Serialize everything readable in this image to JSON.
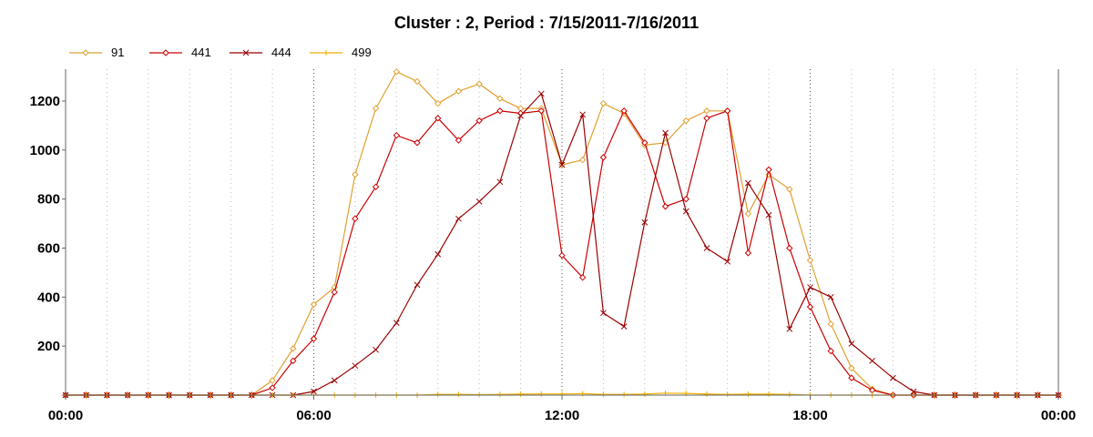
{
  "chart_data": {
    "type": "line",
    "title": "Cluster : 2, Period : 7/15/2011-7/16/2011",
    "xlabel": "",
    "ylabel": "",
    "x_ticks": [
      "00:00",
      "06:00",
      "12:00",
      "18:00",
      "00:00"
    ],
    "y_ticks": [
      200,
      400,
      600,
      800,
      1000,
      1200
    ],
    "xlim_hours": [
      0,
      24
    ],
    "ylim": [
      0,
      1330
    ],
    "grid": true,
    "legend_position": "top-left",
    "series": [
      {
        "name": "91",
        "color": "#e0a030",
        "marker": "diamond",
        "x": [
          0,
          0.5,
          1,
          1.5,
          2,
          2.5,
          3,
          3.5,
          4,
          4.5,
          5,
          5.5,
          6,
          6.5,
          7,
          7.5,
          8,
          8.5,
          9,
          9.5,
          10,
          10.5,
          11,
          11.5,
          12,
          12.5,
          13,
          13.5,
          14,
          14.5,
          15,
          15.5,
          16,
          16.5,
          17,
          17.5,
          18,
          18.5,
          19,
          19.5,
          20,
          20.5,
          21,
          21.5,
          22,
          22.5,
          23,
          23.5,
          24
        ],
        "values": [
          0,
          0,
          0,
          0,
          0,
          0,
          0,
          0,
          0,
          0,
          60,
          190,
          370,
          440,
          900,
          1170,
          1320,
          1280,
          1190,
          1240,
          1270,
          1210,
          1170,
          1170,
          940,
          960,
          1190,
          1150,
          1020,
          1030,
          1120,
          1160,
          1160,
          740,
          900,
          840,
          550,
          290,
          110,
          25,
          0,
          0,
          0,
          0,
          0,
          0,
          0,
          0,
          0
        ]
      },
      {
        "name": "441",
        "color": "#cc0000",
        "marker": "diamond",
        "x": [
          0,
          0.5,
          1,
          1.5,
          2,
          2.5,
          3,
          3.5,
          4,
          4.5,
          5,
          5.5,
          6,
          6.5,
          7,
          7.5,
          8,
          8.5,
          9,
          9.5,
          10,
          10.5,
          11,
          11.5,
          12,
          12.5,
          13,
          13.5,
          14,
          14.5,
          15,
          15.5,
          16,
          16.5,
          17,
          17.5,
          18,
          18.5,
          19,
          19.5,
          20,
          20.5,
          21,
          21.5,
          22,
          22.5,
          23,
          23.5,
          24
        ],
        "values": [
          0,
          0,
          0,
          0,
          0,
          0,
          0,
          0,
          0,
          0,
          30,
          140,
          230,
          420,
          720,
          850,
          1060,
          1030,
          1130,
          1040,
          1120,
          1160,
          1150,
          1160,
          570,
          480,
          970,
          1160,
          1030,
          770,
          800,
          1130,
          1160,
          580,
          920,
          600,
          360,
          180,
          70,
          20,
          0,
          0,
          0,
          0,
          0,
          0,
          0,
          0,
          0
        ]
      },
      {
        "name": "444",
        "color": "#990000",
        "marker": "x",
        "x": [
          0,
          0.5,
          1,
          1.5,
          2,
          2.5,
          3,
          3.5,
          4,
          4.5,
          5,
          5.5,
          6,
          6.5,
          7,
          7.5,
          8,
          8.5,
          9,
          9.5,
          10,
          10.5,
          11,
          11.5,
          12,
          12.5,
          13,
          13.5,
          14,
          14.5,
          15,
          15.5,
          16,
          16.5,
          17,
          17.5,
          18,
          18.5,
          19,
          19.5,
          20,
          20.5,
          21,
          21.5,
          22,
          22.5,
          23,
          23.5,
          24
        ],
        "values": [
          0,
          0,
          0,
          0,
          0,
          0,
          0,
          0,
          0,
          0,
          0,
          0,
          15,
          60,
          120,
          185,
          295,
          450,
          575,
          720,
          790,
          870,
          1140,
          1230,
          940,
          1145,
          335,
          280,
          705,
          1070,
          750,
          600,
          545,
          865,
          735,
          270,
          440,
          400,
          210,
          140,
          70,
          15,
          0,
          0,
          0,
          0,
          0,
          0,
          0
        ]
      },
      {
        "name": "499",
        "color": "#f0b000",
        "marker": "plus",
        "x": [
          0,
          0.5,
          1,
          1.5,
          2,
          2.5,
          3,
          3.5,
          4,
          4.5,
          5,
          5.5,
          6,
          6.5,
          7,
          7.5,
          8,
          8.5,
          9,
          9.5,
          10,
          10.5,
          11,
          11.5,
          12,
          12.5,
          13,
          13.5,
          14,
          14.5,
          15,
          15.5,
          16,
          16.5,
          17,
          17.5,
          18,
          18.5,
          19,
          19.5,
          20,
          20.5,
          21,
          21.5,
          22,
          22.5,
          23,
          23.5,
          24
        ],
        "values": [
          0,
          0,
          0,
          0,
          0,
          0,
          0,
          0,
          0,
          0,
          0,
          0,
          0,
          0,
          0,
          0,
          0,
          0,
          3,
          3,
          2,
          3,
          4,
          5,
          5,
          6,
          3,
          3,
          4,
          8,
          7,
          4,
          3,
          4,
          4,
          3,
          0,
          0,
          0,
          0,
          0,
          0,
          0,
          0,
          0,
          0,
          0,
          0,
          0
        ]
      }
    ]
  }
}
